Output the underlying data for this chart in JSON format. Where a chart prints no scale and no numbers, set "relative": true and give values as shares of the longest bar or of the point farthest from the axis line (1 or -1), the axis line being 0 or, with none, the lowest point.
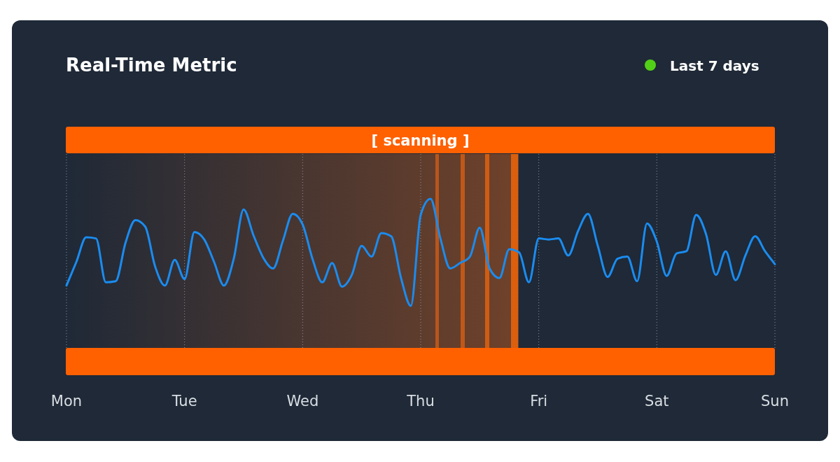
{
  "chart_data": {
    "type": "line",
    "title": "Real-Time Metric",
    "subtitle": "Last 7 days",
    "relative": true,
    "categories": [
      "Mon",
      null,
      null,
      null,
      null,
      null,
      null,
      null,
      null,
      null,
      null,
      null,
      "Tue",
      null,
      null,
      null,
      null,
      null,
      null,
      null,
      null,
      null,
      null,
      null,
      "Wed",
      null,
      null,
      null,
      null,
      null,
      null,
      null,
      null,
      null,
      null,
      null,
      "Thu",
      null,
      null,
      null,
      null,
      null,
      null,
      null,
      null,
      null,
      null,
      null,
      "Fri",
      null,
      null,
      null,
      null,
      null,
      null,
      null,
      null,
      null,
      null,
      null,
      "Sat",
      null,
      null,
      null,
      null,
      null,
      null,
      null,
      null,
      null,
      null,
      null,
      "Sun"
    ],
    "series": [
      {
        "color": "#1a8cf0",
        "values": [
          0.19,
          0.41,
          0.64,
          0.63,
          0.22,
          0.23,
          0.59,
          0.8,
          0.74,
          0.37,
          0.19,
          0.43,
          0.25,
          0.69,
          0.62,
          0.41,
          0.19,
          0.44,
          0.9,
          0.66,
          0.45,
          0.35,
          0.61,
          0.86,
          0.76,
          0.44,
          0.22,
          0.4,
          0.18,
          0.29,
          0.56,
          0.46,
          0.68,
          0.65,
          0.26,
          0,
          0.85,
          1,
          0.63,
          0.35,
          0.4,
          0.46,
          0.73,
          0.35,
          0.26,
          0.53,
          0.5,
          0.22,
          0.63,
          0.62,
          0.63,
          0.47,
          0.7,
          0.86,
          0.56,
          0.27,
          0.44,
          0.46,
          0.23,
          0.77,
          0.6,
          0.28,
          0.49,
          0.51,
          0.85,
          0.67,
          0.29,
          0.51,
          0.24,
          0.47,
          0.65,
          0.51,
          0.39
        ]
      }
    ],
    "grid": "x",
    "annotations": [
      "[ scanning ]"
    ]
  }
}
